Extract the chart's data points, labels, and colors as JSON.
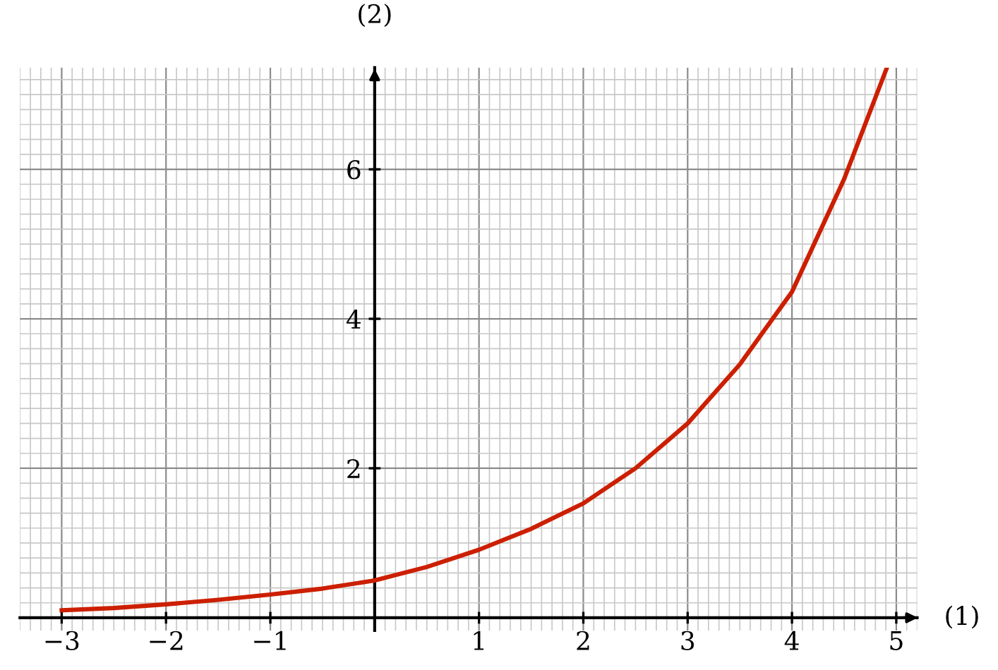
{
  "chart_data": {
    "type": "line",
    "xlabel": "(1)",
    "ylabel": "(2)",
    "x": [
      -3,
      -2.5,
      -2,
      -1.5,
      -1,
      -0.5,
      0,
      0.5,
      1,
      1.5,
      2,
      2.5,
      3,
      3.5,
      4,
      4.5,
      4.91
    ],
    "series": [
      {
        "color": "#cc1f00",
        "values": [
          0.1,
          0.13,
          0.18,
          0.24,
          0.31,
          0.39,
          0.5,
          0.68,
          0.91,
          1.19,
          1.53,
          2.0,
          2.6,
          3.39,
          4.36,
          5.87,
          7.36
        ]
      }
    ],
    "xlim": [
      -3.4,
      5.2
    ],
    "ylim": [
      -0.17,
      7.36
    ],
    "xticks": [
      {
        "value": -3,
        "label": "−3"
      },
      {
        "value": -2,
        "label": "−2"
      },
      {
        "value": -1,
        "label": "−1"
      },
      1,
      2,
      3,
      4,
      5
    ],
    "yticks": [
      2,
      4,
      6
    ],
    "grid": true,
    "legend": false,
    "marker": "none",
    "line_style": "solid"
  }
}
